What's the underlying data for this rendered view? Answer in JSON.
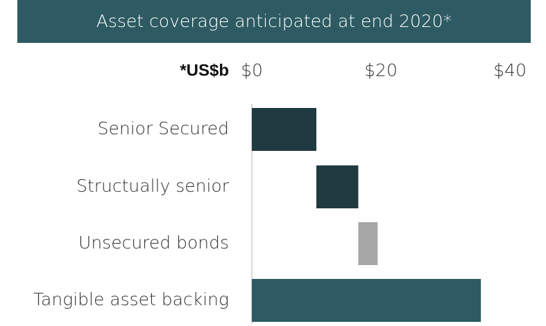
{
  "chart_data": {
    "type": "waterfall",
    "title": "Asset coverage anticipated at end 2020*",
    "unit_label": "*US$b",
    "categories": [
      "Senior Secured",
      "Structually senior",
      "Unsecured bonds",
      "Tangible asset backing"
    ],
    "values": [
      10,
      6.5,
      3,
      35.5
    ],
    "measure": [
      "relative",
      "relative",
      "relative",
      "total"
    ],
    "colors": [
      "#1f3a40",
      "#1f3a40",
      "#a6a6a6",
      "#2e5b63"
    ],
    "xlim": [
      0,
      40
    ],
    "xticks": [
      {
        "value": 0,
        "label": "$0"
      },
      {
        "value": 20,
        "label": "$20"
      },
      {
        "value": 40,
        "label": "$40"
      }
    ]
  }
}
